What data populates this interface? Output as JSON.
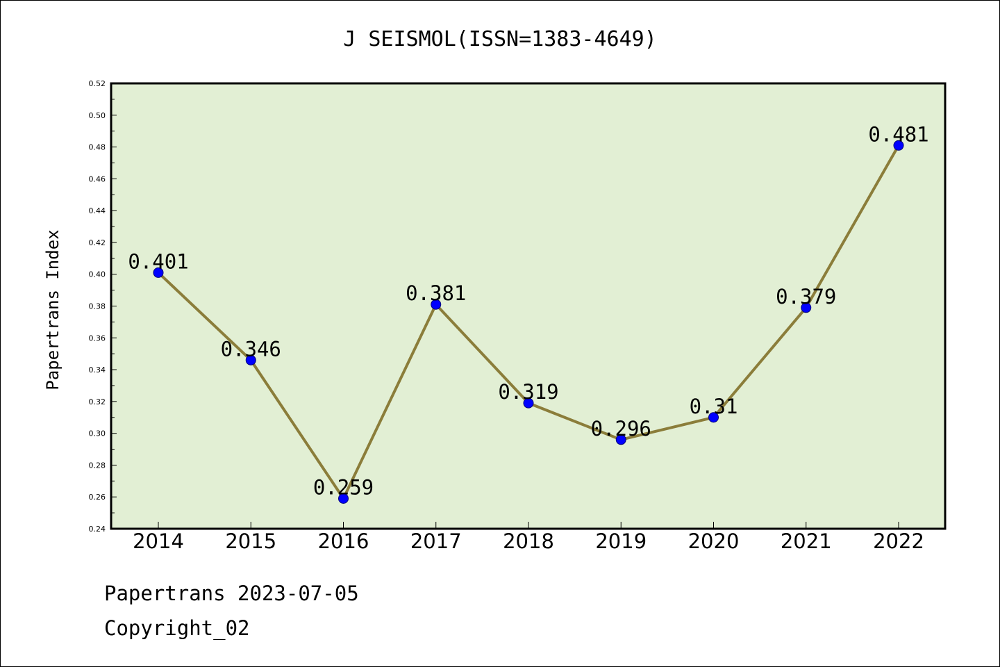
{
  "chart_data": {
    "type": "line",
    "title": "J SEISMOL(ISSN=1383-4649)",
    "ylabel": "Papertrans Index",
    "xlabel": "",
    "categories": [
      "2014",
      "2015",
      "2016",
      "2017",
      "2018",
      "2019",
      "2020",
      "2021",
      "2022"
    ],
    "values": [
      0.401,
      0.346,
      0.259,
      0.381,
      0.319,
      0.296,
      0.31,
      0.379,
      0.481
    ],
    "data_labels": [
      "0.401",
      "0.346",
      "0.259",
      "0.381",
      "0.319",
      "0.296",
      "0.31",
      "0.379",
      "0.481"
    ],
    "ylim": [
      0.24,
      0.52
    ],
    "yticks": [
      "0.24",
      "0.26",
      "0.28",
      "0.30",
      "0.32",
      "0.34",
      "0.36",
      "0.38",
      "0.40",
      "0.42",
      "0.44",
      "0.46",
      "0.48",
      "0.50",
      "0.52"
    ],
    "grid": false,
    "legend": "none",
    "colors": {
      "plot_background": "#e2efd4",
      "line": "#8b7d3a",
      "marker": "#0000ff"
    }
  },
  "footer": {
    "line1": "Papertrans 2023-07-05",
    "line2": "Copyright_02"
  }
}
